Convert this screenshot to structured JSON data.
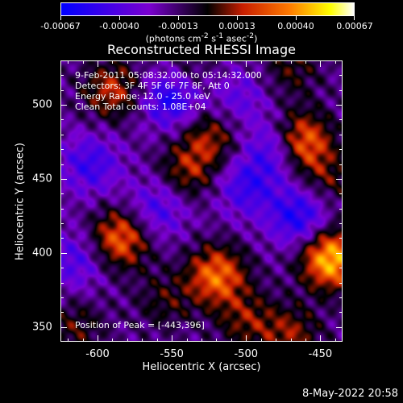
{
  "colorbar": {
    "tick_labels": [
      "-0.00067",
      "-0.00040",
      "-0.00013",
      "0.00013",
      "0.00040",
      "0.00067"
    ],
    "units_html": "(photons cm<sup>-2</sup> s<sup>-1</sup> asec<sup>-2</sup>)",
    "colors": [
      "#0000ff",
      "#7a00d0",
      "#000000",
      "#c81e00",
      "#ff7a00",
      "#ffff00",
      "#ffffff"
    ]
  },
  "title": "Reconstructed RHESSI Image",
  "info": {
    "time_range": "9-Feb-2011 05:08:32.000 to 05:14:32.000",
    "detectors": "Detectors: 3F 4F 5F 6F 7F 8F, Att 0",
    "energy_range": "Energy Range: 12.0 - 25.0 keV",
    "clean": "Clean     Total counts: 1.08E+04",
    "peak": "Position of Peak = [-443,396]"
  },
  "chart_data": {
    "type": "heatmap",
    "title": "Reconstructed RHESSI Image",
    "xlabel": "Heliocentric X (arcsec)",
    "ylabel": "Heliocentric Y (arcsec)",
    "xlim": [
      -625,
      -435
    ],
    "ylim": [
      340,
      530
    ],
    "x_ticks": [
      -600,
      -550,
      -500,
      -450
    ],
    "y_ticks": [
      350,
      400,
      450,
      500
    ],
    "x_tick_labels": [
      "-600",
      "-550",
      "-500",
      "-450"
    ],
    "y_tick_labels": [
      "350",
      "400",
      "450",
      "500"
    ],
    "value_range": [
      -0.00067,
      0.00067
    ],
    "peak_position": [
      -443,
      396
    ],
    "sources": [
      {
        "x": -443,
        "y": 396,
        "value": 0.00067
      },
      {
        "x": -463,
        "y": 475,
        "value": 0.00055
      },
      {
        "x": -585,
        "y": 410,
        "value": 0.00048
      },
      {
        "x": -520,
        "y": 385,
        "value": 0.0005
      },
      {
        "x": -590,
        "y": 510,
        "value": 0.00035
      },
      {
        "x": -525,
        "y": 478,
        "value": 0.0003
      },
      {
        "x": -540,
        "y": 455,
        "value": 0.00028
      },
      {
        "x": -500,
        "y": 355,
        "value": 0.00025
      },
      {
        "x": -615,
        "y": 350,
        "value": 0.0002
      },
      {
        "x": -470,
        "y": 345,
        "value": 0.00028
      },
      {
        "x": -555,
        "y": 368,
        "value": 0.00018
      },
      {
        "x": -540,
        "y": 520,
        "value": 0.00018
      },
      {
        "x": -470,
        "y": 525,
        "value": 0.0002
      },
      {
        "x": -445,
        "y": 450,
        "value": 0.0002
      },
      {
        "x": -550,
        "y": 505,
        "value": -0.00045
      },
      {
        "x": -465,
        "y": 425,
        "value": -0.0004
      },
      {
        "x": -480,
        "y": 470,
        "value": -0.00035
      },
      {
        "x": -605,
        "y": 460,
        "value": -0.0003
      },
      {
        "x": -560,
        "y": 430,
        "value": -0.00028
      },
      {
        "x": -615,
        "y": 395,
        "value": -0.00025
      },
      {
        "x": -500,
        "y": 445,
        "value": -0.0003
      },
      {
        "x": -505,
        "y": 505,
        "value": -0.0002
      }
    ]
  },
  "timestamp": "8-May-2022 20:58"
}
